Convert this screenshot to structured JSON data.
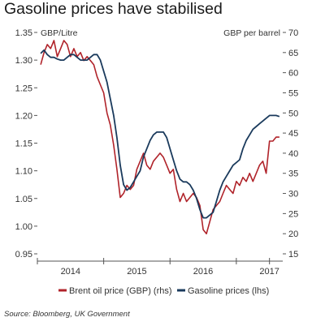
{
  "title": "Gasoline prices have stabilised",
  "source": "Source: Bloomberg, UK Government",
  "colors": {
    "brent": "#b0232a",
    "gasoline": "#1a3a5c",
    "axis": "#555555",
    "text": "#333333"
  },
  "chart_data": {
    "type": "line",
    "title": "Gasoline prices have stabilised",
    "left_axis": {
      "unit_label": "GBP/Litre",
      "ylim": [
        0.95,
        1.35
      ],
      "ticks": [
        "1.35",
        "1.30",
        "1.25",
        "1.20",
        "1.15",
        "1.10",
        "1.05",
        "1.00",
        "0.95"
      ]
    },
    "right_axis": {
      "unit_label": "GBP per barrel",
      "ylim": [
        15,
        70
      ],
      "ticks": [
        "70",
        "65",
        "60",
        "55",
        "50",
        "45",
        "40",
        "35",
        "30",
        "25",
        "20",
        "15"
      ]
    },
    "x_axis": {
      "range": [
        2013.5,
        2017.2
      ],
      "ticks": [
        {
          "label": "2014",
          "x": 2014.0
        },
        {
          "label": "2015",
          "x": 2015.0
        },
        {
          "label": "2016",
          "x": 2016.0
        },
        {
          "label": "2017",
          "x": 2017.0
        }
      ]
    },
    "legend": {
      "placement": "bottom",
      "items": [
        "Brent oil price (GBP) (rhs)",
        "Gasoline prices (lhs)"
      ]
    },
    "series": [
      {
        "name": "Brent oil price (GBP) (rhs)",
        "axis": "right",
        "color": "#b0232a",
        "x": [
          2013.55,
          2013.6,
          2013.65,
          2013.7,
          2013.75,
          2013.8,
          2013.85,
          2013.9,
          2013.95,
          2014.0,
          2014.05,
          2014.1,
          2014.15,
          2014.2,
          2014.25,
          2014.3,
          2014.35,
          2014.4,
          2014.45,
          2014.5,
          2014.55,
          2014.6,
          2014.65,
          2014.7,
          2014.75,
          2014.8,
          2014.85,
          2014.9,
          2014.95,
          2015.0,
          2015.05,
          2015.1,
          2015.15,
          2015.2,
          2015.25,
          2015.3,
          2015.35,
          2015.4,
          2015.45,
          2015.5,
          2015.55,
          2015.6,
          2015.65,
          2015.7,
          2015.75,
          2015.8,
          2015.85,
          2015.9,
          2015.95,
          2016.0,
          2016.05,
          2016.1,
          2016.15,
          2016.2,
          2016.25,
          2016.3,
          2016.35,
          2016.4,
          2016.45,
          2016.5,
          2016.55,
          2016.6,
          2016.65,
          2016.7,
          2016.75,
          2016.8,
          2016.85,
          2016.9,
          2016.95,
          2017.0,
          2017.05,
          2017.1,
          2017.15
        ],
        "values": [
          62,
          65,
          67,
          66,
          68,
          64,
          66,
          68,
          67,
          64,
          66,
          64,
          65,
          63,
          64,
          63,
          62,
          59,
          57,
          55,
          50,
          47,
          42,
          36,
          29,
          30,
          32,
          31,
          32,
          36,
          38,
          40,
          37,
          36,
          38,
          39,
          40,
          39,
          37,
          35,
          36,
          31,
          28,
          30,
          28,
          29,
          30,
          29,
          27,
          21,
          20,
          23,
          26,
          27,
          28,
          30,
          32,
          31,
          30,
          33,
          32,
          34,
          33,
          35,
          33,
          35,
          37,
          38,
          35,
          43,
          43,
          44,
          44
        ]
      },
      {
        "name": "Gasoline prices (lhs)",
        "axis": "left",
        "color": "#1a3a5c",
        "x": [
          2013.55,
          2013.6,
          2013.65,
          2013.7,
          2013.75,
          2013.8,
          2013.85,
          2013.9,
          2013.95,
          2014.0,
          2014.05,
          2014.1,
          2014.15,
          2014.2,
          2014.25,
          2014.3,
          2014.35,
          2014.4,
          2014.45,
          2014.5,
          2014.55,
          2014.6,
          2014.65,
          2014.7,
          2014.75,
          2014.8,
          2014.85,
          2014.9,
          2014.95,
          2015.0,
          2015.05,
          2015.1,
          2015.15,
          2015.2,
          2015.25,
          2015.3,
          2015.35,
          2015.4,
          2015.45,
          2015.5,
          2015.55,
          2015.6,
          2015.65,
          2015.7,
          2015.75,
          2015.8,
          2015.85,
          2015.9,
          2015.95,
          2016.0,
          2016.05,
          2016.1,
          2016.15,
          2016.2,
          2016.25,
          2016.3,
          2016.35,
          2016.4,
          2016.45,
          2016.5,
          2016.55,
          2016.6,
          2016.65,
          2016.7,
          2016.75,
          2016.8,
          2016.85,
          2016.9,
          2016.95,
          2017.0,
          2017.05,
          2017.1,
          2017.15
        ],
        "values": [
          1.312,
          1.318,
          1.31,
          1.305,
          1.305,
          1.302,
          1.3,
          1.3,
          1.305,
          1.31,
          1.31,
          1.305,
          1.3,
          1.3,
          1.3,
          1.305,
          1.31,
          1.31,
          1.3,
          1.28,
          1.26,
          1.23,
          1.2,
          1.16,
          1.11,
          1.075,
          1.065,
          1.07,
          1.08,
          1.09,
          1.1,
          1.125,
          1.14,
          1.155,
          1.165,
          1.17,
          1.17,
          1.17,
          1.16,
          1.14,
          1.12,
          1.1,
          1.085,
          1.08,
          1.08,
          1.075,
          1.065,
          1.05,
          1.03,
          1.015,
          1.015,
          1.02,
          1.025,
          1.045,
          1.065,
          1.08,
          1.09,
          1.1,
          1.11,
          1.115,
          1.12,
          1.14,
          1.155,
          1.165,
          1.175,
          1.18,
          1.185,
          1.19,
          1.195,
          1.2,
          1.2,
          1.2,
          1.198
        ]
      }
    ]
  }
}
